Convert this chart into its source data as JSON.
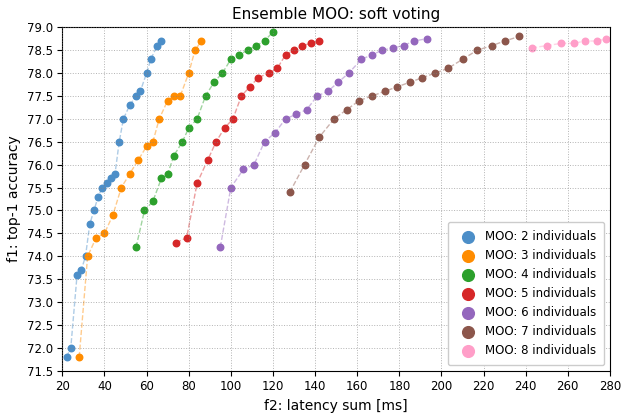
{
  "title": "Ensemble MOO: soft voting",
  "xlabel": "f2: latency sum [ms]",
  "ylabel": "f1: top-1 accuracy",
  "xlim": [
    20,
    280
  ],
  "ylim": [
    71.5,
    79.0
  ],
  "xticks": [
    20,
    40,
    60,
    80,
    100,
    120,
    140,
    160,
    180,
    200,
    220,
    240,
    260,
    280
  ],
  "yticks": [
    71.5,
    72.0,
    72.5,
    73.0,
    73.5,
    74.0,
    74.5,
    75.0,
    75.5,
    76.0,
    76.5,
    77.0,
    77.5,
    78.0,
    78.5,
    79.0
  ],
  "series": [
    {
      "label": "MOO: 2 individuals",
      "color": "#4C8EC8",
      "x": [
        22,
        24,
        27,
        29,
        31,
        33,
        35,
        37,
        39,
        41,
        43,
        45,
        47,
        49,
        52,
        55,
        57,
        60,
        62,
        65,
        67
      ],
      "y": [
        71.8,
        72.0,
        73.6,
        73.7,
        74.0,
        74.7,
        75.0,
        75.3,
        75.5,
        75.6,
        75.7,
        75.8,
        76.5,
        77.0,
        77.3,
        77.5,
        77.6,
        78.0,
        78.3,
        78.6,
        78.7
      ]
    },
    {
      "label": "MOO: 3 individuals",
      "color": "#FF8C00",
      "x": [
        28,
        32,
        36,
        40,
        44,
        48,
        52,
        56,
        60,
        63,
        66,
        70,
        73,
        76,
        80,
        83,
        86
      ],
      "y": [
        71.8,
        74.0,
        74.4,
        74.5,
        74.9,
        75.5,
        75.8,
        76.1,
        76.4,
        76.5,
        77.0,
        77.4,
        77.5,
        77.5,
        78.0,
        78.5,
        78.7
      ]
    },
    {
      "label": "MOO: 4 individuals",
      "color": "#2CA02C",
      "x": [
        55,
        59,
        63,
        67,
        70,
        73,
        77,
        80,
        84,
        88,
        92,
        96,
        100,
        104,
        108,
        112,
        116,
        120
      ],
      "y": [
        74.2,
        75.0,
        75.2,
        75.7,
        75.8,
        76.2,
        76.5,
        76.8,
        77.0,
        77.5,
        77.8,
        78.0,
        78.3,
        78.4,
        78.5,
        78.6,
        78.7,
        78.9
      ]
    },
    {
      "label": "MOO: 5 individuals",
      "color": "#D62728",
      "x": [
        74,
        79,
        84,
        89,
        93,
        97,
        101,
        105,
        109,
        113,
        118,
        122,
        126,
        130,
        134,
        138,
        142
      ],
      "y": [
        74.3,
        74.4,
        75.6,
        76.1,
        76.5,
        76.8,
        77.0,
        77.5,
        77.7,
        77.9,
        78.0,
        78.1,
        78.4,
        78.5,
        78.6,
        78.65,
        78.7
      ]
    },
    {
      "label": "MOO: 6 individuals",
      "color": "#9467BD",
      "x": [
        95,
        100,
        106,
        111,
        116,
        121,
        126,
        131,
        136,
        141,
        146,
        151,
        156,
        162,
        167,
        172,
        177,
        182,
        187,
        193
      ],
      "y": [
        74.2,
        75.5,
        75.9,
        76.0,
        76.5,
        76.7,
        77.0,
        77.1,
        77.2,
        77.5,
        77.6,
        77.8,
        78.0,
        78.3,
        78.4,
        78.5,
        78.55,
        78.6,
        78.7,
        78.75
      ]
    },
    {
      "label": "MOO: 7 individuals",
      "color": "#8C564B",
      "x": [
        128,
        135,
        142,
        149,
        155,
        161,
        167,
        173,
        179,
        185,
        191,
        197,
        203,
        210,
        217,
        224,
        230,
        237
      ],
      "y": [
        75.4,
        76.0,
        76.6,
        77.0,
        77.2,
        77.4,
        77.5,
        77.6,
        77.7,
        77.8,
        77.9,
        78.0,
        78.1,
        78.3,
        78.5,
        78.6,
        78.7,
        78.8
      ]
    },
    {
      "label": "MOO: 8 individuals",
      "color": "#FF9EC8",
      "x": [
        243,
        250,
        257,
        263,
        268,
        274,
        278
      ],
      "y": [
        78.55,
        78.6,
        78.65,
        78.65,
        78.7,
        78.7,
        78.75
      ]
    }
  ]
}
